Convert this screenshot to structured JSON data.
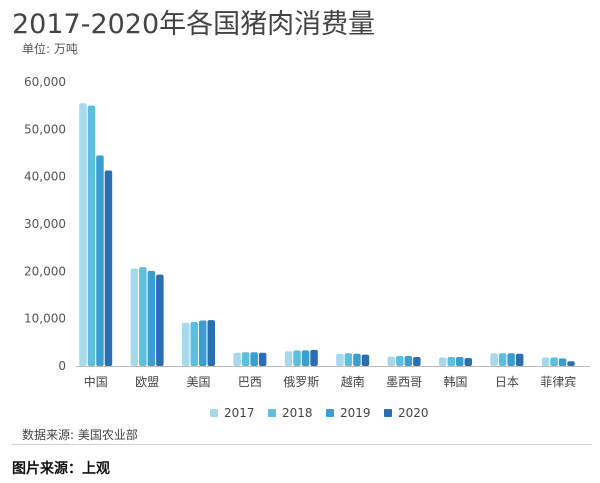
{
  "title": "2017-2020年各国猪肉消费量",
  "unit_label": "单位: 万吨",
  "source_label": "数据来源: 美国农业部",
  "photo_credit": "图片来源：上观",
  "chart_data": {
    "type": "bar",
    "title": "2017-2020年各国猪肉消费量",
    "ylabel": "单位: 万吨",
    "xlabel": "",
    "ylim": [
      0,
      60000
    ],
    "yticks": [
      0,
      10000,
      20000,
      30000,
      40000,
      50000,
      60000
    ],
    "ytick_labels": [
      "0",
      "10,000",
      "20,000",
      "30,000",
      "40,000",
      "50,000",
      "60,000"
    ],
    "grid": false,
    "legend_position": "bottom",
    "categories": [
      "中国",
      "欧盟",
      "美国",
      "巴西",
      "俄罗斯",
      "越南",
      "墨西哥",
      "韩国",
      "日本",
      "菲律宾"
    ],
    "series": [
      {
        "name": "2017",
        "color": "#a8d8ec",
        "values": [
          55500,
          20600,
          9100,
          2800,
          3100,
          2600,
          2000,
          1800,
          2700,
          1800
        ]
      },
      {
        "name": "2018",
        "color": "#5bbfe0",
        "values": [
          55000,
          20900,
          9300,
          2900,
          3300,
          2700,
          2100,
          1900,
          2700,
          1800
        ]
      },
      {
        "name": "2019",
        "color": "#3a9fd0",
        "values": [
          44500,
          20100,
          9600,
          2900,
          3300,
          2600,
          2100,
          1900,
          2700,
          1600
        ]
      },
      {
        "name": "2020",
        "color": "#2a6fb4",
        "values": [
          41300,
          19300,
          9700,
          2800,
          3400,
          2400,
          1900,
          1700,
          2600,
          1000
        ]
      }
    ]
  }
}
